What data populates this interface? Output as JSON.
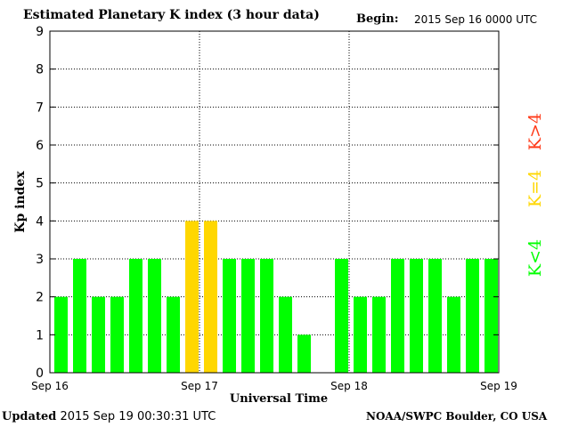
{
  "header": {
    "title": "Estimated Planetary K index (3 hour data)",
    "begin_label": "Begin:",
    "begin_value": "2015 Sep 16 0000 UTC"
  },
  "footer": {
    "updated_label": "Updated",
    "updated_value": "2015 Sep 19 00:30:31 UTC",
    "credit": "NOAA/SWPC Boulder, CO USA"
  },
  "colors": {
    "below_4": "#00ff00",
    "equal_4": "#ffd700",
    "above_4": "#ff3b1a",
    "frame": "#000000"
  },
  "legend": [
    {
      "label": "K<4",
      "color": "#00ff00"
    },
    {
      "label": "K=4",
      "color": "#ffd700"
    },
    {
      "label": "K>4",
      "color": "#ff3b1a"
    }
  ],
  "chart_data": {
    "type": "bar",
    "title": "Estimated Planetary K index (3 hour data)",
    "xlabel": "Universal Time",
    "ylabel": "Kp index",
    "ylim": [
      0,
      9
    ],
    "yticks": [
      0,
      1,
      2,
      3,
      4,
      5,
      6,
      7,
      8,
      9
    ],
    "xticks": [
      "Sep 16",
      "Sep 17",
      "Sep 18",
      "Sep 19"
    ],
    "interval_hours": 3,
    "grid": "dotted",
    "legend_placement": "right, vertical",
    "values": [
      2,
      3,
      2,
      2,
      3,
      3,
      2,
      4,
      4,
      3,
      3,
      3,
      2,
      1,
      null,
      3,
      2,
      2,
      3,
      3,
      3,
      2,
      3,
      3
    ]
  }
}
